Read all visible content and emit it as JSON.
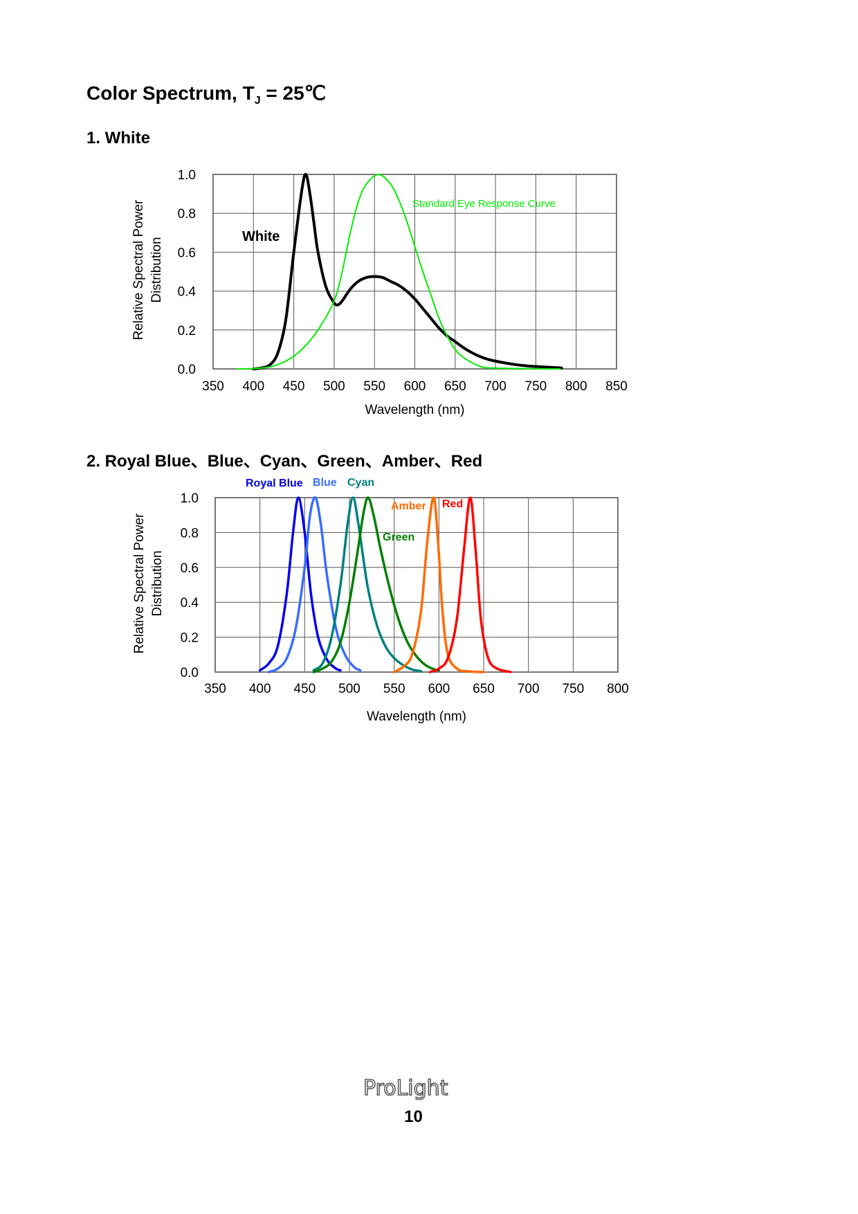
{
  "page": {
    "title_main": "Color Spectrum, T",
    "title_sub": "J",
    "title_tail": " = 25℃",
    "section1_title": "1. White",
    "section2_title": "2. Royal Blue、Blue、Cyan、Green、Amber、Red",
    "logo": "ProLight",
    "page_number": "10"
  },
  "chart_data": [
    {
      "type": "line",
      "xlabel": "Wavelength (nm)",
      "ylabel_line1": "Relative Spectral Power",
      "ylabel_line2": "Distribution",
      "xlim": [
        350,
        850
      ],
      "ylim": [
        0,
        1.0
      ],
      "xticks": [
        "350",
        "400",
        "450",
        "500",
        "550",
        "600",
        "650",
        "700",
        "750",
        "800",
        "850"
      ],
      "yticks": [
        "0.0",
        "0.2",
        "0.4",
        "0.6",
        "0.8",
        "1.0"
      ],
      "grid": true,
      "series": [
        {
          "name": "White",
          "color": "#000000",
          "x": [
            400,
            410,
            420,
            430,
            440,
            450,
            460,
            465,
            470,
            475,
            480,
            490,
            500,
            505,
            510,
            520,
            530,
            540,
            550,
            560,
            570,
            580,
            590,
            600,
            610,
            620,
            630,
            640,
            650,
            660,
            670,
            680,
            690,
            700,
            720,
            740,
            760,
            782
          ],
          "y": [
            0,
            0.005,
            0.02,
            0.08,
            0.25,
            0.6,
            0.92,
            1.0,
            0.9,
            0.75,
            0.6,
            0.42,
            0.34,
            0.33,
            0.35,
            0.41,
            0.45,
            0.47,
            0.475,
            0.47,
            0.45,
            0.43,
            0.4,
            0.36,
            0.31,
            0.26,
            0.21,
            0.17,
            0.14,
            0.11,
            0.085,
            0.065,
            0.05,
            0.04,
            0.025,
            0.015,
            0.01,
            0.005
          ]
        },
        {
          "name": "Standard Eye Response Curve",
          "color": "#00ee00",
          "x": [
            380,
            400,
            420,
            440,
            460,
            480,
            500,
            510,
            520,
            530,
            540,
            555,
            570,
            580,
            590,
            600,
            610,
            620,
            630,
            640,
            650,
            660,
            680,
            700,
            780
          ],
          "y": [
            0,
            0.002,
            0.01,
            0.04,
            0.1,
            0.2,
            0.35,
            0.5,
            0.7,
            0.86,
            0.95,
            1.0,
            0.95,
            0.87,
            0.76,
            0.63,
            0.5,
            0.38,
            0.26,
            0.17,
            0.1,
            0.06,
            0.015,
            0.004,
            0
          ]
        }
      ]
    },
    {
      "type": "line",
      "xlabel": "Wavelength (nm)",
      "ylabel_line1": "Relative Spectral Power",
      "ylabel_line2": "Distribution",
      "xlim": [
        350,
        800
      ],
      "ylim": [
        0,
        1.0
      ],
      "xticks": [
        "350",
        "400",
        "450",
        "500",
        "550",
        "600",
        "650",
        "700",
        "750",
        "800"
      ],
      "yticks": [
        "0.0",
        "0.2",
        "0.4",
        "0.6",
        "0.8",
        "1.0"
      ],
      "grid": true,
      "series": [
        {
          "name": "Royal Blue",
          "color": "#0000ee",
          "x": [
            400,
            410,
            420,
            430,
            437,
            443,
            450,
            457,
            465,
            475,
            485,
            490
          ],
          "y": [
            0.01,
            0.05,
            0.15,
            0.45,
            0.8,
            1.0,
            0.8,
            0.45,
            0.2,
            0.07,
            0.02,
            0.01
          ]
        },
        {
          "name": "Blue",
          "color": "#3a6cff",
          "x": [
            410,
            420,
            430,
            440,
            450,
            456,
            462,
            468,
            475,
            485,
            495,
            505,
            512
          ],
          "y": [
            0,
            0.02,
            0.08,
            0.25,
            0.6,
            0.9,
            1.0,
            0.85,
            0.55,
            0.25,
            0.1,
            0.03,
            0.01
          ]
        },
        {
          "name": "Cyan",
          "color": "#008080",
          "x": [
            460,
            470,
            480,
            490,
            498,
            504,
            510,
            520,
            530,
            540,
            550,
            560,
            570,
            580
          ],
          "y": [
            0.01,
            0.05,
            0.2,
            0.5,
            0.85,
            1.0,
            0.85,
            0.5,
            0.28,
            0.15,
            0.08,
            0.04,
            0.015,
            0.005
          ]
        },
        {
          "name": "Green",
          "color": "#008000",
          "x": [
            460,
            470,
            480,
            490,
            500,
            510,
            516,
            521,
            527,
            535,
            545,
            555,
            565,
            575,
            585,
            595,
            600
          ],
          "y": [
            0,
            0.02,
            0.06,
            0.17,
            0.4,
            0.72,
            0.92,
            1.0,
            0.9,
            0.7,
            0.48,
            0.3,
            0.17,
            0.09,
            0.04,
            0.015,
            0.01
          ]
        },
        {
          "name": "Amber",
          "color": "#ff6a00",
          "x": [
            550,
            560,
            570,
            580,
            587,
            594,
            599,
            604,
            610,
            620,
            630,
            650
          ],
          "y": [
            0,
            0.03,
            0.1,
            0.35,
            0.75,
            1.0,
            0.75,
            0.35,
            0.1,
            0.02,
            0.005,
            0
          ]
        },
        {
          "name": "Red",
          "color": "#ff0000",
          "x": [
            590,
            600,
            610,
            620,
            628,
            635,
            641,
            647,
            655,
            665,
            680
          ],
          "y": [
            0,
            0.02,
            0.08,
            0.3,
            0.7,
            1.0,
            0.7,
            0.3,
            0.08,
            0.02,
            0
          ]
        }
      ]
    }
  ]
}
